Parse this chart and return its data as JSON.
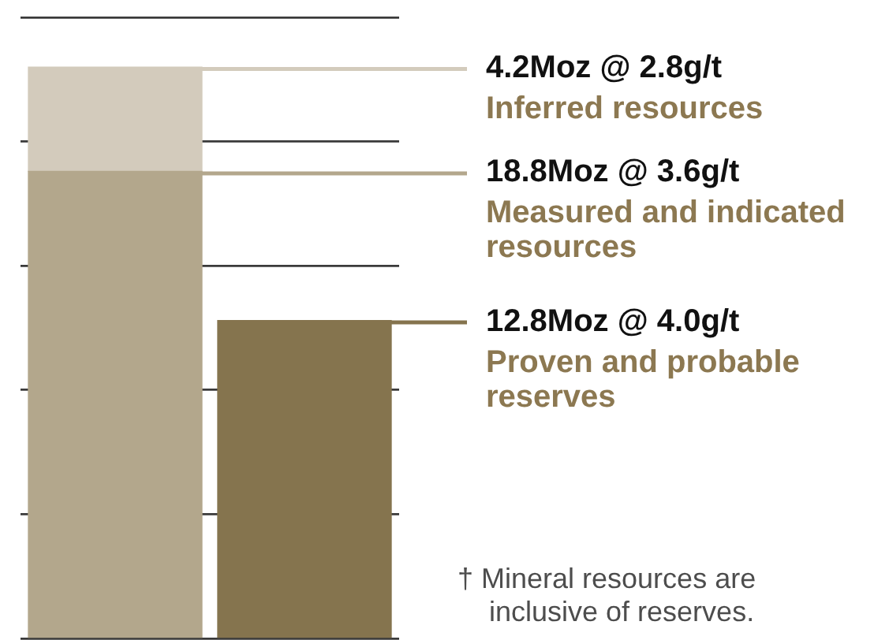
{
  "chart_data": {
    "type": "bar",
    "categories": [
      null,
      null
    ],
    "series": [
      {
        "name": "Measured and indicated resources",
        "color": "#b3a78c",
        "values": [
          18.8,
          null
        ],
        "value_labels": [
          "18.8Moz @ 3.6g/t",
          null
        ]
      },
      {
        "name": "Inferred resources",
        "color": "#d3cbbc",
        "values": [
          4.2,
          null
        ],
        "value_labels": [
          "4.2Moz @ 2.8g/t",
          null
        ]
      },
      {
        "name": "Proven and probable reserves",
        "color": "#85744e",
        "values": [
          null,
          12.8
        ],
        "value_labels": [
          null,
          "12.8Moz @ 4.0g/t"
        ]
      }
    ],
    "stacked": true,
    "ylim": [
      0,
      25
    ],
    "yticks": [
      0,
      5,
      10,
      15,
      20,
      25
    ],
    "grid": "y",
    "tick_labels": false,
    "annotations": [
      "† Mineral resources are inclusive of reserves."
    ]
  }
}
